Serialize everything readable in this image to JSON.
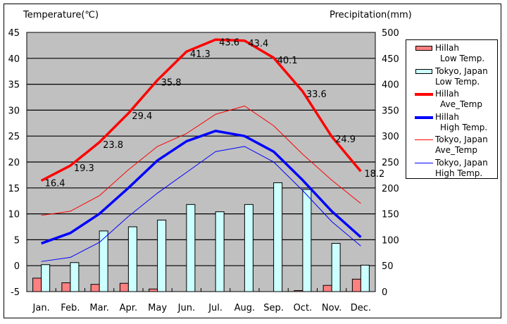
{
  "chart_data": {
    "type": "bar+line",
    "title_left": "Temperature(℃)",
    "title_right": "Precipitation(mm)",
    "categories": [
      "Jan.",
      "Feb.",
      "Mar.",
      "Apr.",
      "May",
      "Jun.",
      "Jul.",
      "Aug.",
      "Sep.",
      "Oct.",
      "Nov.",
      "Dec."
    ],
    "y_left": {
      "min": -5,
      "max": 45,
      "ticks": [
        45,
        40,
        35,
        30,
        25,
        20,
        15,
        10,
        5,
        0,
        -5
      ]
    },
    "y_right": {
      "min": 0,
      "max": 500,
      "ticks": [
        500,
        450,
        400,
        350,
        300,
        250,
        200,
        150,
        100,
        50,
        0
      ]
    },
    "grid": true,
    "legend_position": "right",
    "series": [
      {
        "name": "Hillah Low Temp.",
        "label_lines": [
          "Hillah",
          "Low Temp."
        ],
        "kind": "bar",
        "axis": "right",
        "color": "#ff8080",
        "values": [
          26,
          17,
          14,
          16,
          5,
          0,
          0,
          0,
          0,
          2,
          12,
          24
        ]
      },
      {
        "name": "Tokyo, Japan Low Temp.",
        "label_lines": [
          "Tokyo, Japan",
          "Low Temp."
        ],
        "kind": "bar",
        "axis": "right",
        "color": "#ccffff",
        "values": [
          52,
          56,
          117,
          125,
          138,
          168,
          154,
          168,
          210,
          197,
          93,
          51
        ]
      },
      {
        "name": "Hillah Ave_Temp",
        "label_lines": [
          "Hillah",
          "Ave_Temp"
        ],
        "kind": "line",
        "axis": "left",
        "color": "#ff0000",
        "width": "thick",
        "values": [
          16.4,
          19.3,
          23.8,
          29.4,
          35.8,
          41.3,
          43.6,
          43.4,
          40.1,
          33.6,
          24.9,
          18.2
        ],
        "data_labels": [
          "16.4",
          "19.3",
          "23.8",
          "29.4",
          "35.8",
          "41.3",
          "43.6",
          "43.4",
          "40.1",
          "33.6",
          "24.9",
          "18.2"
        ]
      },
      {
        "name": "Hillah High Temp.",
        "label_lines": [
          "Hillah",
          "High Temp."
        ],
        "kind": "line",
        "axis": "left",
        "color": "#0000ff",
        "width": "thick",
        "values": [
          4.3,
          6.3,
          10.0,
          15.0,
          20.3,
          24.0,
          26.0,
          25.0,
          22.0,
          16.5,
          10.5,
          5.5
        ]
      },
      {
        "name": "Tokyo, Japan Ave_Temp",
        "label_lines": [
          "Tokyo, Japan",
          "Ave_Temp"
        ],
        "kind": "line",
        "axis": "left",
        "color": "#ff0000",
        "width": "thin",
        "values": [
          9.7,
          10.5,
          13.5,
          18.5,
          23.0,
          25.5,
          29.2,
          30.8,
          27.0,
          21.5,
          16.5,
          12.0
        ]
      },
      {
        "name": "Tokyo, Japan High Temp.",
        "label_lines": [
          "Tokyo, Japan",
          "High Temp."
        ],
        "kind": "line",
        "axis": "left",
        "color": "#0000ff",
        "width": "thin",
        "values": [
          0.8,
          1.6,
          4.5,
          9.5,
          14.0,
          18.0,
          22.0,
          23.0,
          20.0,
          14.5,
          8.5,
          3.8
        ]
      }
    ]
  }
}
